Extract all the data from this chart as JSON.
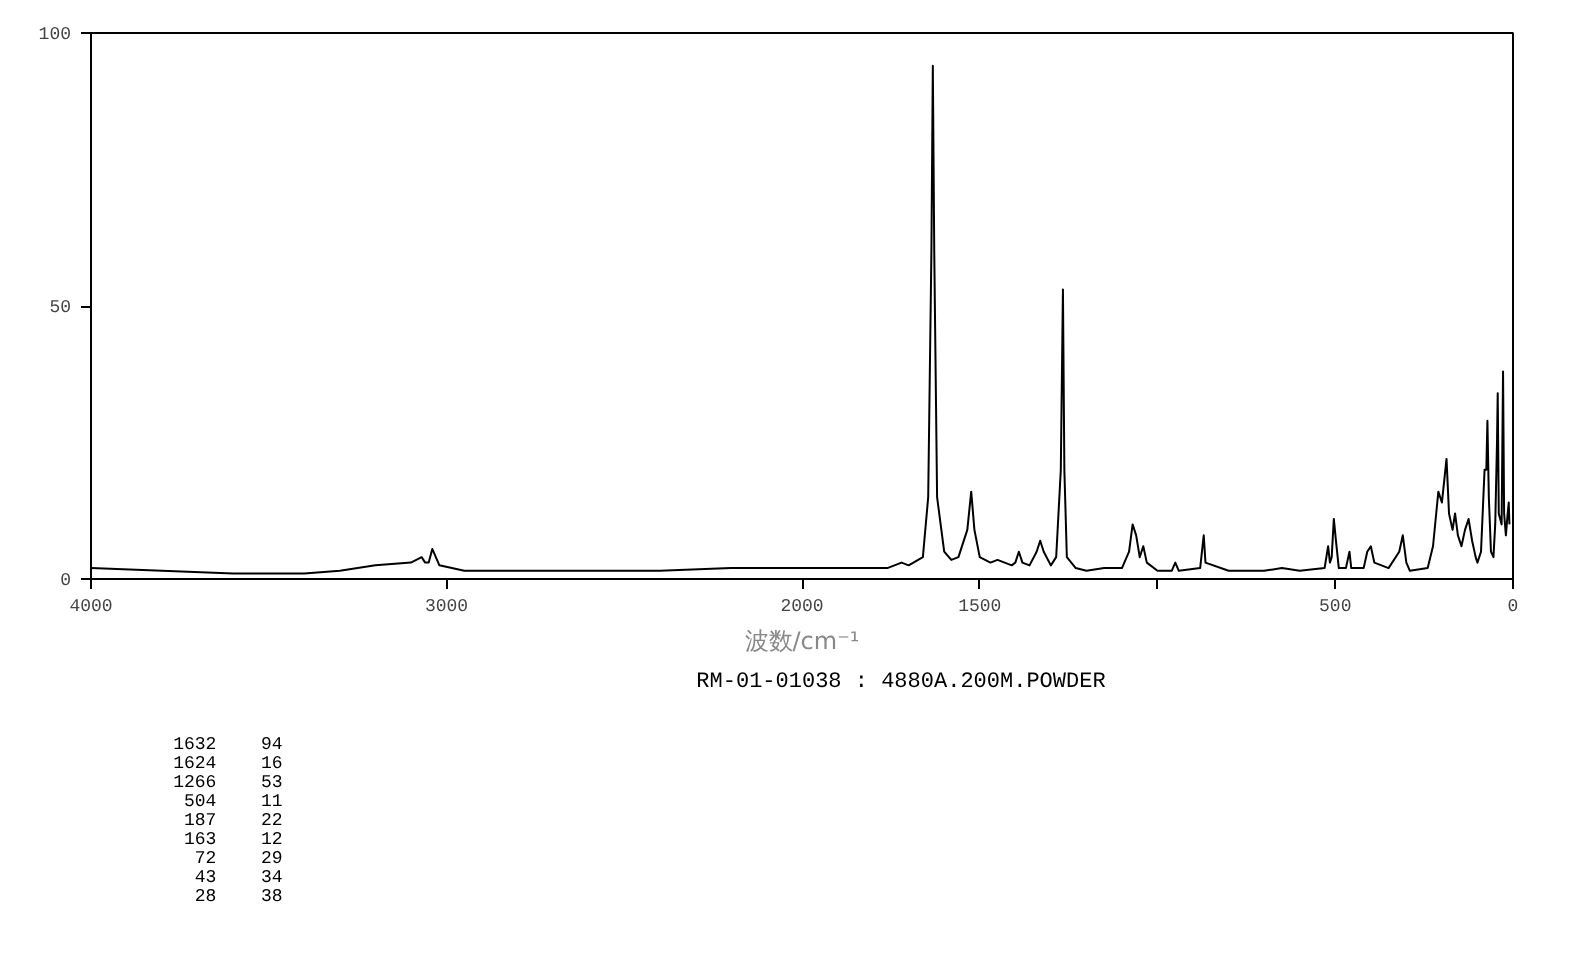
{
  "chart_data": {
    "type": "line",
    "xlabel": "波数/cm⁻¹",
    "subtitle": "RM-01-01038 : 4880A.200M.POWDER",
    "xlim": [
      4000,
      0
    ],
    "ylim": [
      0,
      100
    ],
    "xticks": [
      4000,
      3000,
      2000,
      1500,
      {
        "value": 1000,
        "label": null
      },
      500,
      0
    ],
    "yticks": [
      0,
      50,
      100
    ],
    "grid": false,
    "marker": "none",
    "line_style": "solid",
    "annotations": [
      "1632 94",
      "1624 16",
      "1266 53",
      "504 11",
      "187 22",
      "163 12",
      "72 29",
      "43 34",
      "28 38"
    ],
    "series": [
      {
        "color": "#000000",
        "x": [
          4000,
          3800,
          3600,
          3400,
          3300,
          3200,
          3100,
          3070,
          3060,
          3050,
          3040,
          3020,
          2950,
          2800,
          2600,
          2400,
          2200,
          2000,
          1900,
          1800,
          1760,
          1720,
          1700,
          1660,
          1645,
          1636,
          1632,
          1628,
          1620,
          1600,
          1580,
          1560,
          1535,
          1524,
          1515,
          1500,
          1470,
          1450,
          1430,
          1410,
          1400,
          1390,
          1380,
          1360,
          1340,
          1330,
          1320,
          1300,
          1285,
          1272,
          1266,
          1262,
          1255,
          1230,
          1200,
          1150,
          1100,
          1080,
          1070,
          1060,
          1050,
          1040,
          1030,
          1000,
          960,
          950,
          940,
          880,
          870,
          865,
          800,
          700,
          650,
          600,
          530,
          520,
          515,
          510,
          504,
          498,
          490,
          470,
          460,
          455,
          420,
          410,
          400,
          390,
          350,
          320,
          310,
          300,
          290,
          240,
          225,
          210,
          200,
          187,
          180,
          170,
          163,
          155,
          145,
          135,
          125,
          115,
          105,
          100,
          90,
          80,
          75,
          72,
          68,
          62,
          55,
          50,
          45,
          43,
          40,
          32,
          28,
          25,
          20,
          15,
          12,
          10
        ],
        "values": [
          2,
          1.5,
          1,
          1,
          1.5,
          2.5,
          3,
          4,
          3,
          3,
          5.5,
          2.5,
          1.5,
          1.5,
          1.5,
          1.5,
          2,
          2,
          2,
          2,
          2,
          3,
          2.5,
          4,
          15,
          60,
          94,
          60,
          15,
          5,
          3.5,
          4,
          9,
          16,
          9,
          4,
          3,
          3.5,
          3,
          2.5,
          3,
          5,
          3,
          2.5,
          5,
          7,
          5,
          2.5,
          4,
          20,
          53,
          20,
          4,
          2,
          1.5,
          2,
          2,
          5,
          10,
          8,
          4,
          6,
          3,
          1.5,
          1.5,
          3,
          1.5,
          2,
          8,
          3,
          1.5,
          1.5,
          2,
          1.5,
          2,
          6,
          3,
          4,
          11,
          7,
          2,
          2,
          5,
          2,
          2,
          5,
          6,
          3,
          2,
          5,
          8,
          3,
          1.5,
          2,
          6,
          16,
          14,
          22,
          12,
          9,
          12,
          8,
          6,
          9,
          11,
          7,
          4,
          3,
          5,
          20,
          20,
          29,
          15,
          5,
          4,
          10,
          25,
          34,
          12,
          10,
          38,
          12,
          8,
          12,
          14,
          10
        ]
      }
    ]
  }
}
